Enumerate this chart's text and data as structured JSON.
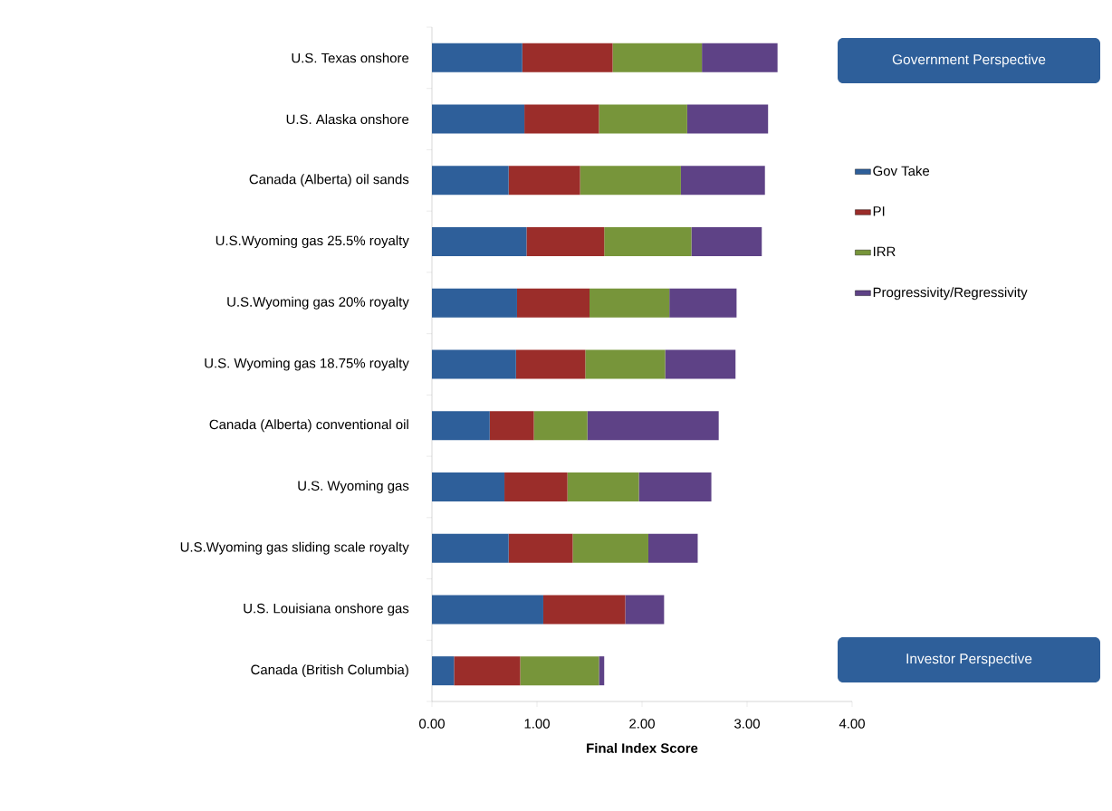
{
  "chart_data": {
    "type": "bar",
    "orientation": "horizontal",
    "stacked": true,
    "categories": [
      "U.S. Texas onshore",
      "U.S. Alaska onshore",
      "Canada (Alberta) oil sands",
      "U.S.Wyoming gas 25.5% royalty",
      "U.S.Wyoming gas 20% royalty",
      "U.S. Wyoming gas 18.75% royalty",
      "Canada (Alberta) conventional oil",
      "U.S. Wyoming gas",
      "U.S.Wyoming gas sliding scale royalty",
      "U.S. Louisiana onshore gas",
      "Canada (British Columbia)"
    ],
    "series": [
      {
        "name": "Gov Take",
        "color": "#2e5f9a",
        "values": [
          0.86,
          0.88,
          0.73,
          0.9,
          0.81,
          0.8,
          0.55,
          0.69,
          0.73,
          1.06,
          0.21
        ]
      },
      {
        "name": "PI",
        "color": "#9b2d2a",
        "values": [
          0.86,
          0.71,
          0.68,
          0.74,
          0.69,
          0.66,
          0.42,
          0.6,
          0.61,
          0.78,
          0.63
        ]
      },
      {
        "name": "IRR",
        "color": "#77953a",
        "values": [
          0.85,
          0.84,
          0.96,
          0.83,
          0.76,
          0.76,
          0.51,
          0.68,
          0.72,
          0,
          0.75
        ]
      },
      {
        "name": "Progressivity/Regressivity",
        "color": "#5e4286",
        "values": [
          0.72,
          0.77,
          0.8,
          0.67,
          0.64,
          0.67,
          1.25,
          0.69,
          0.47,
          0.37,
          0.05
        ]
      }
    ],
    "xlim": [
      0,
      4
    ],
    "xticks": [
      {
        "value": 0,
        "label": "0.00"
      },
      {
        "value": 1,
        "label": "1.00"
      },
      {
        "value": 2,
        "label": "2.00"
      },
      {
        "value": 3,
        "label": "3.00"
      },
      {
        "value": 4,
        "label": "4.00"
      }
    ],
    "xlabel": "Final Index Score",
    "legend": "right",
    "annotations": [
      "Government Perspective",
      "Investor Perspective"
    ]
  }
}
